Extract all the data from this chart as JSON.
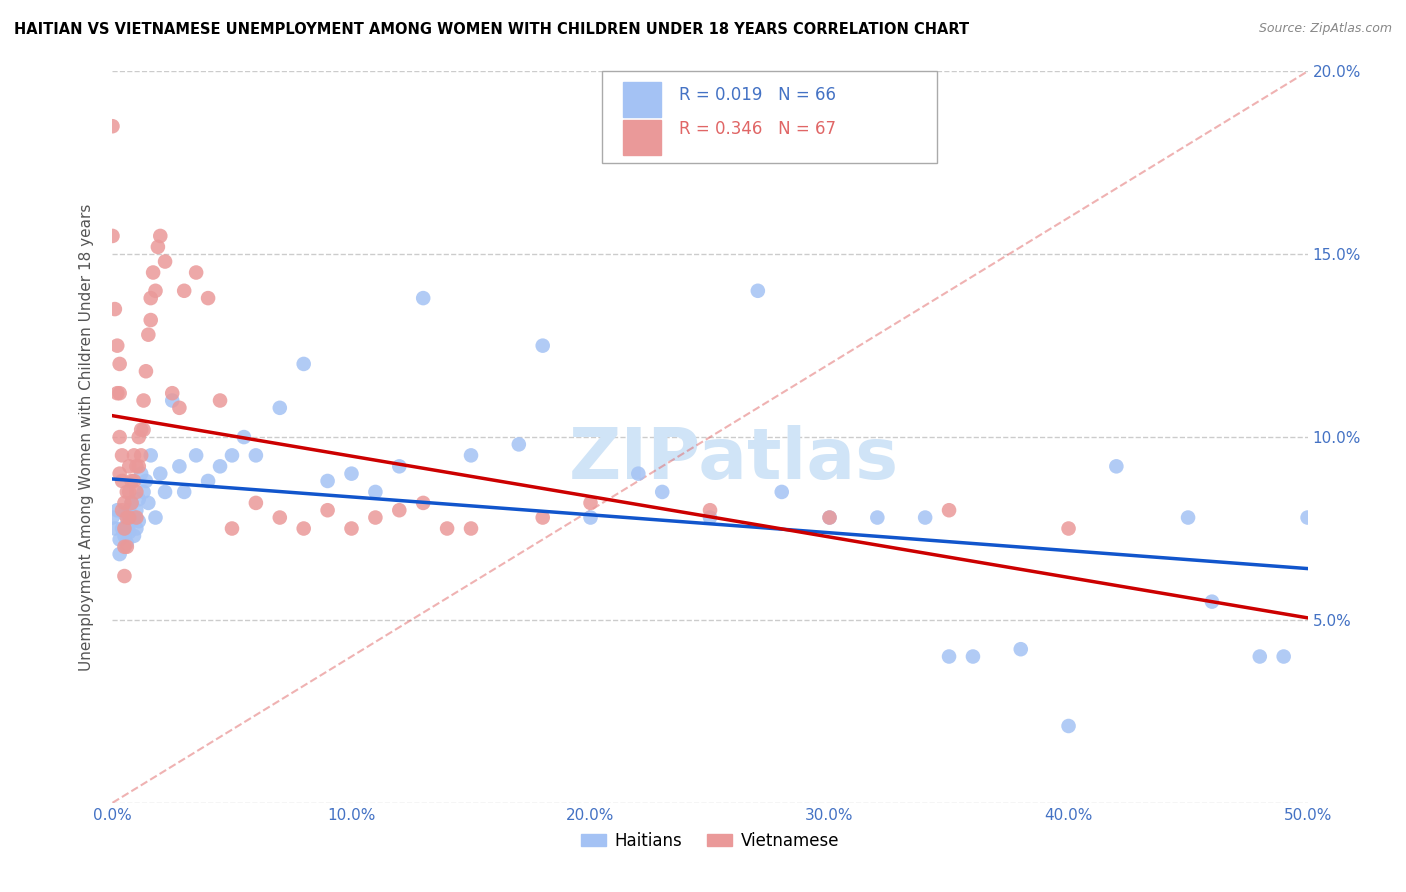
{
  "title": "HAITIAN VS VIETNAMESE UNEMPLOYMENT AMONG WOMEN WITH CHILDREN UNDER 18 YEARS CORRELATION CHART",
  "source": "Source: ZipAtlas.com",
  "ylabel": "Unemployment Among Women with Children Under 18 years",
  "xlim": [
    0.0,
    0.5
  ],
  "ylim": [
    0.0,
    0.2
  ],
  "haitian_color": "#a4c2f4",
  "haitian_line_color": "#1155cc",
  "vietnamese_color": "#ea9999",
  "vietnamese_line_color": "#cc0000",
  "diag_color": "#f4cccc",
  "haitian_R": 0.019,
  "haitian_N": 66,
  "vietnamese_R": 0.346,
  "vietnamese_N": 67,
  "watermark_text": "ZIPatlas",
  "watermark_color": "#d0e4f7",
  "background_color": "#ffffff",
  "grid_color": "#cccccc",
  "tick_color": "#4472c4",
  "legend_label_haitian": "Haitians",
  "legend_label_vietnamese": "Vietnamese",
  "haitian_scatter_x": [
    0.0,
    0.001,
    0.002,
    0.003,
    0.003,
    0.004,
    0.005,
    0.005,
    0.006,
    0.006,
    0.007,
    0.007,
    0.008,
    0.008,
    0.009,
    0.009,
    0.01,
    0.01,
    0.011,
    0.011,
    0.012,
    0.013,
    0.014,
    0.015,
    0.016,
    0.018,
    0.02,
    0.022,
    0.025,
    0.028,
    0.03,
    0.035,
    0.04,
    0.045,
    0.05,
    0.055,
    0.06,
    0.07,
    0.08,
    0.09,
    0.1,
    0.11,
    0.12,
    0.13,
    0.15,
    0.17,
    0.18,
    0.2,
    0.22,
    0.23,
    0.25,
    0.27,
    0.28,
    0.3,
    0.32,
    0.34,
    0.35,
    0.36,
    0.38,
    0.4,
    0.42,
    0.45,
    0.46,
    0.48,
    0.49,
    0.5
  ],
  "haitian_scatter_y": [
    0.078,
    0.075,
    0.08,
    0.072,
    0.068,
    0.075,
    0.079,
    0.073,
    0.076,
    0.071,
    0.08,
    0.074,
    0.077,
    0.082,
    0.073,
    0.078,
    0.08,
    0.075,
    0.083,
    0.077,
    0.09,
    0.085,
    0.088,
    0.082,
    0.095,
    0.078,
    0.09,
    0.085,
    0.11,
    0.092,
    0.085,
    0.095,
    0.088,
    0.092,
    0.095,
    0.1,
    0.095,
    0.108,
    0.12,
    0.088,
    0.09,
    0.085,
    0.092,
    0.138,
    0.095,
    0.098,
    0.125,
    0.078,
    0.09,
    0.085,
    0.078,
    0.14,
    0.085,
    0.078,
    0.078,
    0.078,
    0.04,
    0.04,
    0.042,
    0.021,
    0.092,
    0.078,
    0.055,
    0.04,
    0.04,
    0.078
  ],
  "vietnamese_scatter_x": [
    0.0,
    0.0,
    0.001,
    0.002,
    0.002,
    0.003,
    0.003,
    0.003,
    0.003,
    0.004,
    0.004,
    0.004,
    0.005,
    0.005,
    0.005,
    0.005,
    0.006,
    0.006,
    0.006,
    0.007,
    0.007,
    0.007,
    0.008,
    0.008,
    0.009,
    0.009,
    0.01,
    0.01,
    0.01,
    0.011,
    0.011,
    0.012,
    0.012,
    0.013,
    0.013,
    0.014,
    0.015,
    0.016,
    0.016,
    0.017,
    0.018,
    0.019,
    0.02,
    0.022,
    0.025,
    0.028,
    0.03,
    0.035,
    0.04,
    0.045,
    0.05,
    0.06,
    0.07,
    0.08,
    0.09,
    0.1,
    0.11,
    0.12,
    0.13,
    0.14,
    0.15,
    0.18,
    0.2,
    0.25,
    0.3,
    0.35,
    0.4
  ],
  "vietnamese_scatter_y": [
    0.185,
    0.155,
    0.135,
    0.125,
    0.112,
    0.12,
    0.112,
    0.1,
    0.09,
    0.095,
    0.088,
    0.08,
    0.082,
    0.075,
    0.07,
    0.062,
    0.085,
    0.078,
    0.07,
    0.092,
    0.085,
    0.078,
    0.088,
    0.082,
    0.095,
    0.088,
    0.092,
    0.085,
    0.078,
    0.1,
    0.092,
    0.102,
    0.095,
    0.11,
    0.102,
    0.118,
    0.128,
    0.138,
    0.132,
    0.145,
    0.14,
    0.152,
    0.155,
    0.148,
    0.112,
    0.108,
    0.14,
    0.145,
    0.138,
    0.11,
    0.075,
    0.082,
    0.078,
    0.075,
    0.08,
    0.075,
    0.078,
    0.08,
    0.082,
    0.075,
    0.075,
    0.078,
    0.082,
    0.08,
    0.078,
    0.08,
    0.075
  ]
}
